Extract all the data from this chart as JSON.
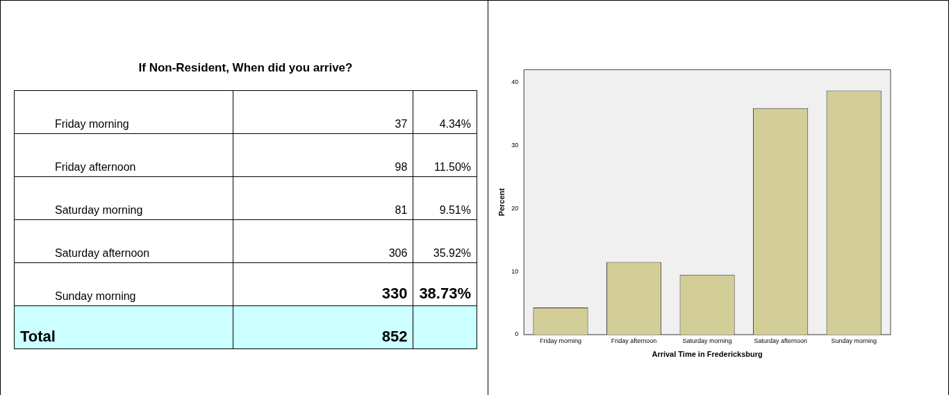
{
  "chart_data": [
    {
      "type": "other",
      "title": "If Non-Resident, When did you arrive?",
      "annotations": [
        "Friday morning",
        "37",
        "4.34%",
        "Friday afternoon",
        "98",
        "11.50%",
        "Saturday morning",
        "81",
        "9.51%",
        "Saturday afternoon",
        "306",
        "35.92%",
        "Sunday morning",
        "330",
        "38.73%",
        "Total",
        "852"
      ]
    },
    {
      "type": "bar",
      "categories": [
        "Friday morning",
        "Friday afternoon",
        "Saturday morning",
        "Saturday afternoon",
        "Sunday morning"
      ],
      "values": [
        4.3,
        11.5,
        9.5,
        35.9,
        38.7
      ],
      "color": "#d3ce97",
      "xlabel": "Arrival Time in Fredericksburg",
      "ylabel": "Percent",
      "ylim": [
        0,
        42
      ],
      "yticks": [
        0,
        10,
        20,
        30,
        40
      ],
      "grid": false,
      "legend": false
    }
  ]
}
